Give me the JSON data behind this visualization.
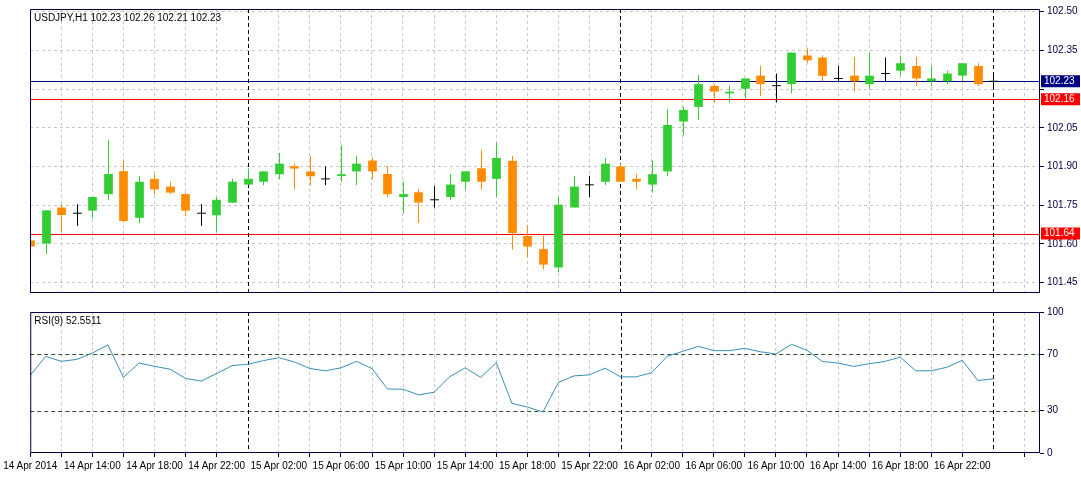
{
  "chart_data": [
    {
      "type": "candlestick",
      "title": "USDJPY,H1 102.23 102.26 102.21 102.23",
      "x": [
        "2014-04-14T10:00",
        "2014-04-14T11:00",
        "2014-04-14T12:00",
        "2014-04-14T13:00",
        "2014-04-14T14:00",
        "2014-04-14T15:00",
        "2014-04-14T16:00",
        "2014-04-14T17:00",
        "2014-04-14T18:00",
        "2014-04-14T19:00",
        "2014-04-14T20:00",
        "2014-04-14T21:00",
        "2014-04-14T22:00",
        "2014-04-14T23:00",
        "2014-04-15T00:00",
        "2014-04-15T01:00",
        "2014-04-15T02:00",
        "2014-04-15T03:00",
        "2014-04-15T04:00",
        "2014-04-15T05:00",
        "2014-04-15T06:00",
        "2014-04-15T07:00",
        "2014-04-15T08:00",
        "2014-04-15T09:00",
        "2014-04-15T10:00",
        "2014-04-15T11:00",
        "2014-04-15T12:00",
        "2014-04-15T13:00",
        "2014-04-15T14:00",
        "2014-04-15T15:00",
        "2014-04-15T16:00",
        "2014-04-15T17:00",
        "2014-04-15T18:00",
        "2014-04-15T19:00",
        "2014-04-15T20:00",
        "2014-04-15T21:00",
        "2014-04-15T22:00",
        "2014-04-15T23:00",
        "2014-04-16T00:00",
        "2014-04-16T01:00",
        "2014-04-16T02:00",
        "2014-04-16T03:00",
        "2014-04-16T04:00",
        "2014-04-16T05:00",
        "2014-04-16T06:00",
        "2014-04-16T07:00",
        "2014-04-16T08:00",
        "2014-04-16T09:00",
        "2014-04-16T10:00",
        "2014-04-16T11:00",
        "2014-04-16T12:00",
        "2014-04-16T13:00",
        "2014-04-16T14:00",
        "2014-04-16T15:00",
        "2014-04-16T16:00",
        "2014-04-16T17:00",
        "2014-04-16T18:00",
        "2014-04-16T19:00",
        "2014-04-16T20:00",
        "2014-04-16T21:00",
        "2014-04-16T22:00",
        "2014-04-16T23:00",
        "2014-04-17T00:00"
      ],
      "ohlc": [
        [
          101.614,
          101.62,
          101.58,
          101.59
        ],
        [
          101.602,
          101.73,
          101.56,
          101.73
        ],
        [
          101.741,
          101.754,
          101.647,
          101.712
        ],
        [
          101.719,
          101.754,
          101.67,
          101.719
        ],
        [
          101.729,
          101.782,
          101.7,
          101.782
        ],
        [
          101.793,
          102.004,
          101.77,
          101.871
        ],
        [
          101.882,
          101.923,
          101.684,
          101.689
        ],
        [
          101.701,
          101.863,
          101.68,
          101.841
        ],
        [
          101.852,
          101.869,
          101.792,
          101.811
        ],
        [
          101.822,
          101.841,
          101.792,
          101.799
        ],
        [
          101.793,
          101.8,
          101.708,
          101.729
        ],
        [
          101.719,
          101.754,
          101.67,
          101.719
        ],
        [
          101.711,
          101.781,
          101.647,
          101.771
        ],
        [
          101.76,
          101.852,
          101.76,
          101.841
        ],
        [
          101.83,
          101.892,
          101.83,
          101.852
        ],
        [
          101.841,
          101.881,
          101.828,
          101.881
        ],
        [
          101.87,
          101.952,
          101.852,
          101.911
        ],
        [
          101.901,
          101.911,
          101.811,
          101.892
        ],
        [
          101.881,
          101.941,
          101.828,
          101.862
        ],
        [
          101.852,
          101.9,
          101.828,
          101.852
        ],
        [
          101.863,
          101.982,
          101.841,
          101.87
        ],
        [
          101.881,
          101.941,
          101.828,
          101.911
        ],
        [
          101.923,
          101.935,
          101.852,
          101.881
        ],
        [
          101.871,
          101.901,
          101.781,
          101.793
        ],
        [
          101.782,
          101.842,
          101.718,
          101.793
        ],
        [
          101.8,
          101.813,
          101.681,
          101.76
        ],
        [
          101.771,
          101.824,
          101.741,
          101.771
        ],
        [
          101.782,
          101.871,
          101.77,
          101.83
        ],
        [
          101.841,
          101.881,
          101.81,
          101.881
        ],
        [
          101.893,
          101.963,
          101.81,
          101.841
        ],
        [
          101.852,
          101.993,
          101.781,
          101.933
        ],
        [
          101.922,
          101.941,
          101.579,
          101.642
        ],
        [
          101.631,
          101.672,
          101.549,
          101.59
        ],
        [
          101.58,
          101.633,
          101.501,
          101.52
        ],
        [
          101.509,
          101.782,
          101.49,
          101.752
        ],
        [
          101.741,
          101.864,
          101.741,
          101.822
        ],
        [
          101.829,
          101.864,
          101.781,
          101.829
        ],
        [
          101.841,
          101.933,
          101.829,
          101.911
        ],
        [
          101.9,
          101.911,
          101.841,
          101.841
        ],
        [
          101.852,
          101.87,
          101.811,
          101.841
        ],
        [
          101.83,
          101.923,
          101.799,
          101.87
        ],
        [
          101.881,
          102.121,
          101.862,
          102.061
        ],
        [
          102.074,
          102.131,
          102.021,
          102.119
        ],
        [
          102.131,
          102.254,
          102.08,
          102.219
        ],
        [
          102.212,
          102.219,
          102.148,
          102.19
        ],
        [
          102.183,
          102.213,
          102.148,
          102.19
        ],
        [
          102.201,
          102.241,
          102.162,
          102.241
        ],
        [
          102.252,
          102.29,
          102.172,
          102.219
        ],
        [
          102.213,
          102.26,
          102.148,
          102.213
        ],
        [
          102.219,
          102.341,
          102.183,
          102.341
        ],
        [
          102.33,
          102.359,
          102.3,
          102.311
        ],
        [
          102.322,
          102.33,
          102.23,
          102.251
        ],
        [
          102.241,
          102.29,
          102.23,
          102.241
        ],
        [
          102.252,
          102.324,
          102.19,
          102.23
        ],
        [
          102.219,
          102.341,
          102.201,
          102.252
        ],
        [
          102.26,
          102.322,
          102.23,
          102.26
        ],
        [
          102.271,
          102.33,
          102.252,
          102.3
        ],
        [
          102.289,
          102.324,
          102.211,
          102.241
        ],
        [
          102.23,
          102.289,
          102.211,
          102.241
        ],
        [
          102.23,
          102.271,
          102.219,
          102.26
        ],
        [
          102.252,
          102.3,
          102.23,
          102.3
        ],
        [
          102.289,
          102.3,
          102.211,
          102.219
        ],
        [
          102.23,
          102.26,
          102.21,
          102.23
        ]
      ],
      "colors": [
        "#ff8c00",
        "#32cd32",
        "#ff8c00",
        "#000000",
        "#32cd32",
        "#32cd32",
        "#ff8c00",
        "#32cd32",
        "#ff8c00",
        "#ff8c00",
        "#ff8c00",
        "#000000",
        "#32cd32",
        "#32cd32",
        "#32cd32",
        "#32cd32",
        "#32cd32",
        "#ff8c00",
        "#ff8c00",
        "#000000",
        "#32cd32",
        "#32cd32",
        "#ff8c00",
        "#ff8c00",
        "#32cd32",
        "#ff8c00",
        "#000000",
        "#32cd32",
        "#32cd32",
        "#ff8c00",
        "#32cd32",
        "#ff8c00",
        "#ff8c00",
        "#ff8c00",
        "#32cd32",
        "#32cd32",
        "#000000",
        "#32cd32",
        "#ff8c00",
        "#ff8c00",
        "#32cd32",
        "#32cd32",
        "#32cd32",
        "#32cd32",
        "#ff8c00",
        "#32cd32",
        "#32cd32",
        "#ff8c00",
        "#000000",
        "#32cd32",
        "#ff8c00",
        "#ff8c00",
        "#000000",
        "#ff8c00",
        "#32cd32",
        "#000000",
        "#32cd32",
        "#ff8c00",
        "#32cd32",
        "#32cd32",
        "#32cd32",
        "#ff8c00",
        "#000000"
      ],
      "xlim": [
        "2014-04-14T10:00",
        "2014-04-17T03:00"
      ],
      "xticks": [
        "2014-04-14T10:00",
        "2014-04-14T12:00",
        "2014-04-14T14:00",
        "2014-04-14T16:00",
        "2014-04-14T18:00",
        "2014-04-14T20:00",
        "2014-04-14T22:00",
        "2014-04-15T02:00",
        "2014-04-15T04:00",
        "2014-04-15T06:00",
        "2014-04-15T08:00",
        "2014-04-15T10:00",
        "2014-04-15T12:00",
        "2014-04-15T14:00",
        "2014-04-15T16:00",
        "2014-04-15T18:00",
        "2014-04-15T20:00",
        "2014-04-15T22:00",
        "2014-04-16T02:00",
        "2014-04-16T04:00",
        "2014-04-16T06:00",
        "2014-04-16T08:00",
        "2014-04-16T10:00",
        "2014-04-16T12:00",
        "2014-04-16T14:00",
        "2014-04-16T16:00",
        "2014-04-16T18:00",
        "2014-04-16T20:00",
        "2014-04-16T22:00",
        "2014-04-17T02:00"
      ],
      "ylim": [
        101.41,
        102.51
      ],
      "yticks": [
        101.45,
        {
          "value": 101.6,
          "label": "101.60"
        },
        101.75,
        {
          "value": 101.9,
          "label": "101.90"
        },
        102.05,
        {
          "value": 102.2,
          "label": null
        },
        102.35,
        {
          "value": 102.5,
          "label": "102.50"
        }
      ],
      "ref_lines": [
        {
          "axis": "y",
          "value": 102.16,
          "label": "102.16",
          "color": "#ff0000"
        },
        {
          "axis": "y",
          "value": 101.64,
          "label": "101.64",
          "color": "#ff0000"
        },
        {
          "axis": "y",
          "value": 102.23,
          "label": "102.23",
          "color": "#000080"
        },
        {
          "axis": "x",
          "value": "2014-04-15T00:00",
          "color": "#000000",
          "line_style": "dashed"
        },
        {
          "axis": "x",
          "value": "2014-04-16T00:00",
          "color": "#000000",
          "line_style": "dashed"
        },
        {
          "axis": "x",
          "value": "2014-04-17T00:00",
          "color": "#000000",
          "line_style": "dashed"
        }
      ],
      "grid": true,
      "tick_labels": "y"
    },
    {
      "type": "line",
      "title": "RSI(9) 52.5511",
      "x": [
        "2014-04-14T10:00",
        "2014-04-14T11:00",
        "2014-04-14T12:00",
        "2014-04-14T13:00",
        "2014-04-14T14:00",
        "2014-04-14T15:00",
        "2014-04-14T16:00",
        "2014-04-14T17:00",
        "2014-04-14T18:00",
        "2014-04-14T19:00",
        "2014-04-14T20:00",
        "2014-04-14T21:00",
        "2014-04-14T22:00",
        "2014-04-14T23:00",
        "2014-04-15T00:00",
        "2014-04-15T01:00",
        "2014-04-15T02:00",
        "2014-04-15T03:00",
        "2014-04-15T04:00",
        "2014-04-15T05:00",
        "2014-04-15T06:00",
        "2014-04-15T07:00",
        "2014-04-15T08:00",
        "2014-04-15T09:00",
        "2014-04-15T10:00",
        "2014-04-15T11:00",
        "2014-04-15T12:00",
        "2014-04-15T13:00",
        "2014-04-15T14:00",
        "2014-04-15T15:00",
        "2014-04-15T16:00",
        "2014-04-15T17:00",
        "2014-04-15T18:00",
        "2014-04-15T19:00",
        "2014-04-15T20:00",
        "2014-04-15T21:00",
        "2014-04-15T22:00",
        "2014-04-15T23:00",
        "2014-04-16T00:00",
        "2014-04-16T01:00",
        "2014-04-16T02:00",
        "2014-04-16T03:00",
        "2014-04-16T04:00",
        "2014-04-16T05:00",
        "2014-04-16T06:00",
        "2014-04-16T07:00",
        "2014-04-16T08:00",
        "2014-04-16T09:00",
        "2014-04-16T10:00",
        "2014-04-16T11:00",
        "2014-04-16T12:00",
        "2014-04-16T13:00",
        "2014-04-16T14:00",
        "2014-04-16T15:00",
        "2014-04-16T16:00",
        "2014-04-16T17:00",
        "2014-04-16T18:00",
        "2014-04-16T19:00",
        "2014-04-16T20:00",
        "2014-04-16T21:00",
        "2014-04-16T22:00",
        "2014-04-16T23:00",
        "2014-04-17T00:00"
      ],
      "values": [
        55.2,
        68.5,
        65,
        66.4,
        70.9,
        76.7,
        53.6,
        63.8,
        61.5,
        59.4,
        52.9,
        51,
        56.4,
        62,
        62.9,
        65.5,
        67.6,
        64.6,
        59.9,
        58.3,
        60.4,
        65,
        59.9,
        45.4,
        45.2,
        41.2,
        43.1,
        54.1,
        60.4,
        53.6,
        64.1,
        35.2,
        32.6,
        29.1,
        50,
        54.7,
        55.4,
        60.2,
        54,
        54,
        57,
        68.5,
        72.1,
        75.6,
        72.6,
        72.6,
        74.2,
        71.8,
        70.2,
        77.1,
        72.8,
        64.9,
        63.8,
        61.4,
        63.3,
        64.9,
        68,
        58.3,
        58.3,
        60.8,
        65.7,
        51.4,
        52.6
      ],
      "color": "#3a8fb7",
      "xlim": [
        "2014-04-14T10:00",
        "2014-04-17T03:00"
      ],
      "xticks": [
        {
          "value": "2014-04-14T10:00",
          "label": "14 Apr 2014"
        },
        {
          "value": "2014-04-14T12:00",
          "label": null
        },
        {
          "value": "2014-04-14T14:00",
          "label": "14 Apr 14:00"
        },
        {
          "value": "2014-04-14T16:00",
          "label": null
        },
        {
          "value": "2014-04-14T18:00",
          "label": "14 Apr 18:00"
        },
        {
          "value": "2014-04-14T20:00",
          "label": null
        },
        {
          "value": "2014-04-14T22:00",
          "label": "14 Apr 22:00"
        },
        {
          "value": "2014-04-15T02:00",
          "label": "15 Apr 02:00"
        },
        {
          "value": "2014-04-15T04:00",
          "label": null
        },
        {
          "value": "2014-04-15T06:00",
          "label": "15 Apr 06:00"
        },
        {
          "value": "2014-04-15T08:00",
          "label": null
        },
        {
          "value": "2014-04-15T10:00",
          "label": "15 Apr 10:00"
        },
        {
          "value": "2014-04-15T12:00",
          "label": null
        },
        {
          "value": "2014-04-15T14:00",
          "label": "15 Apr 14:00"
        },
        {
          "value": "2014-04-15T16:00",
          "label": null
        },
        {
          "value": "2014-04-15T18:00",
          "label": "15 Apr 18:00"
        },
        {
          "value": "2014-04-15T20:00",
          "label": null
        },
        {
          "value": "2014-04-15T22:00",
          "label": "15 Apr 22:00"
        },
        {
          "value": "2014-04-16T02:00",
          "label": "16 Apr 02:00"
        },
        {
          "value": "2014-04-16T04:00",
          "label": null
        },
        {
          "value": "2014-04-16T06:00",
          "label": "16 Apr 06:00"
        },
        {
          "value": "2014-04-16T08:00",
          "label": null
        },
        {
          "value": "2014-04-16T10:00",
          "label": "16 Apr 10:00"
        },
        {
          "value": "2014-04-16T12:00",
          "label": null
        },
        {
          "value": "2014-04-16T14:00",
          "label": "16 Apr 14:00"
        },
        {
          "value": "2014-04-16T16:00",
          "label": null
        },
        {
          "value": "2014-04-16T18:00",
          "label": "16 Apr 18:00"
        },
        {
          "value": "2014-04-16T20:00",
          "label": null
        },
        {
          "value": "2014-04-16T22:00",
          "label": "16 Apr 22:00"
        },
        {
          "value": "2014-04-17T02:00",
          "label": null
        }
      ],
      "ylim": [
        0,
        100
      ],
      "yticks": [
        0,
        30,
        70,
        100
      ],
      "ref_lines": [
        {
          "axis": "y",
          "value": 70,
          "color": "#2f4f2f",
          "line_style": "dashed"
        },
        {
          "axis": "y",
          "value": 30,
          "color": "#2f4f2f",
          "line_style": "dashed"
        },
        {
          "axis": "x",
          "value": "2014-04-15T00:00",
          "color": "#000000",
          "line_style": "dashed"
        },
        {
          "axis": "x",
          "value": "2014-04-16T00:00",
          "color": "#000000",
          "line_style": "dashed"
        },
        {
          "axis": "x",
          "value": "2014-04-17T00:00",
          "color": "#000000",
          "line_style": "dashed"
        }
      ],
      "grid": "x"
    }
  ]
}
